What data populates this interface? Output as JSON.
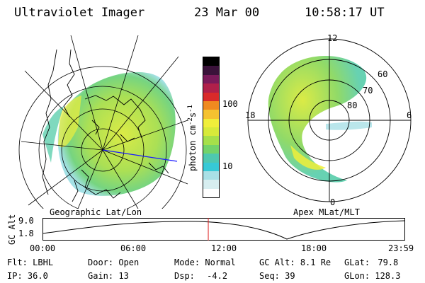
{
  "header": {
    "instrument": "Ultraviolet Imager",
    "date": "23 Mar 00",
    "time": "10:58:17 UT"
  },
  "geo_panel": {
    "label": "Geographic Lat/Lon"
  },
  "apex_panel": {
    "label": "Apex MLat/MLT",
    "mlt_labels": [
      "12",
      "18",
      "6",
      "0"
    ],
    "lat_labels": [
      "60",
      "70",
      "80"
    ]
  },
  "colorbar": {
    "unit_label": "photon cm",
    "unit_exp1": "-2",
    "unit_mid": "s",
    "unit_exp2": "-1",
    "ticks": [
      "100",
      "10"
    ],
    "colors": [
      "#ffffff",
      "#d7eef0",
      "#a9e0e6",
      "#37c9d6",
      "#4ec8b0",
      "#73d36a",
      "#a6e04a",
      "#d7ea3a",
      "#f0ee3a",
      "#f5c230",
      "#f08a20",
      "#d92a2a",
      "#b0204a",
      "#7a1a5a",
      "#3a123a",
      "#000000"
    ]
  },
  "timeline": {
    "axis_label": "GC Alt",
    "y_ticks": [
      "9.0",
      "1.8"
    ],
    "x_ticks": [
      "00:00",
      "06:00",
      "12:00",
      "18:00",
      "23:59"
    ],
    "current_fraction": 0.4571
  },
  "info": {
    "flt_label": "Flt:",
    "flt_value": "LBHL",
    "ip_label": "IP:",
    "ip_value": "36.0",
    "door_label": "Door:",
    "door_value": "Open",
    "gain_label": "Gain:",
    "gain_value": "13",
    "mode_label": "Mode:",
    "mode_value": "Normal",
    "dsp_label": "Dsp:",
    "dsp_value": "-4.2",
    "gcalt_label": "GC Alt:",
    "gcalt_value": "8.1 Re",
    "seq_label": "Seq:",
    "seq_value": "39",
    "glat_label": "GLat:",
    "glat_value": "79.8",
    "glon_label": "GLon:",
    "glon_value": "128.3"
  }
}
